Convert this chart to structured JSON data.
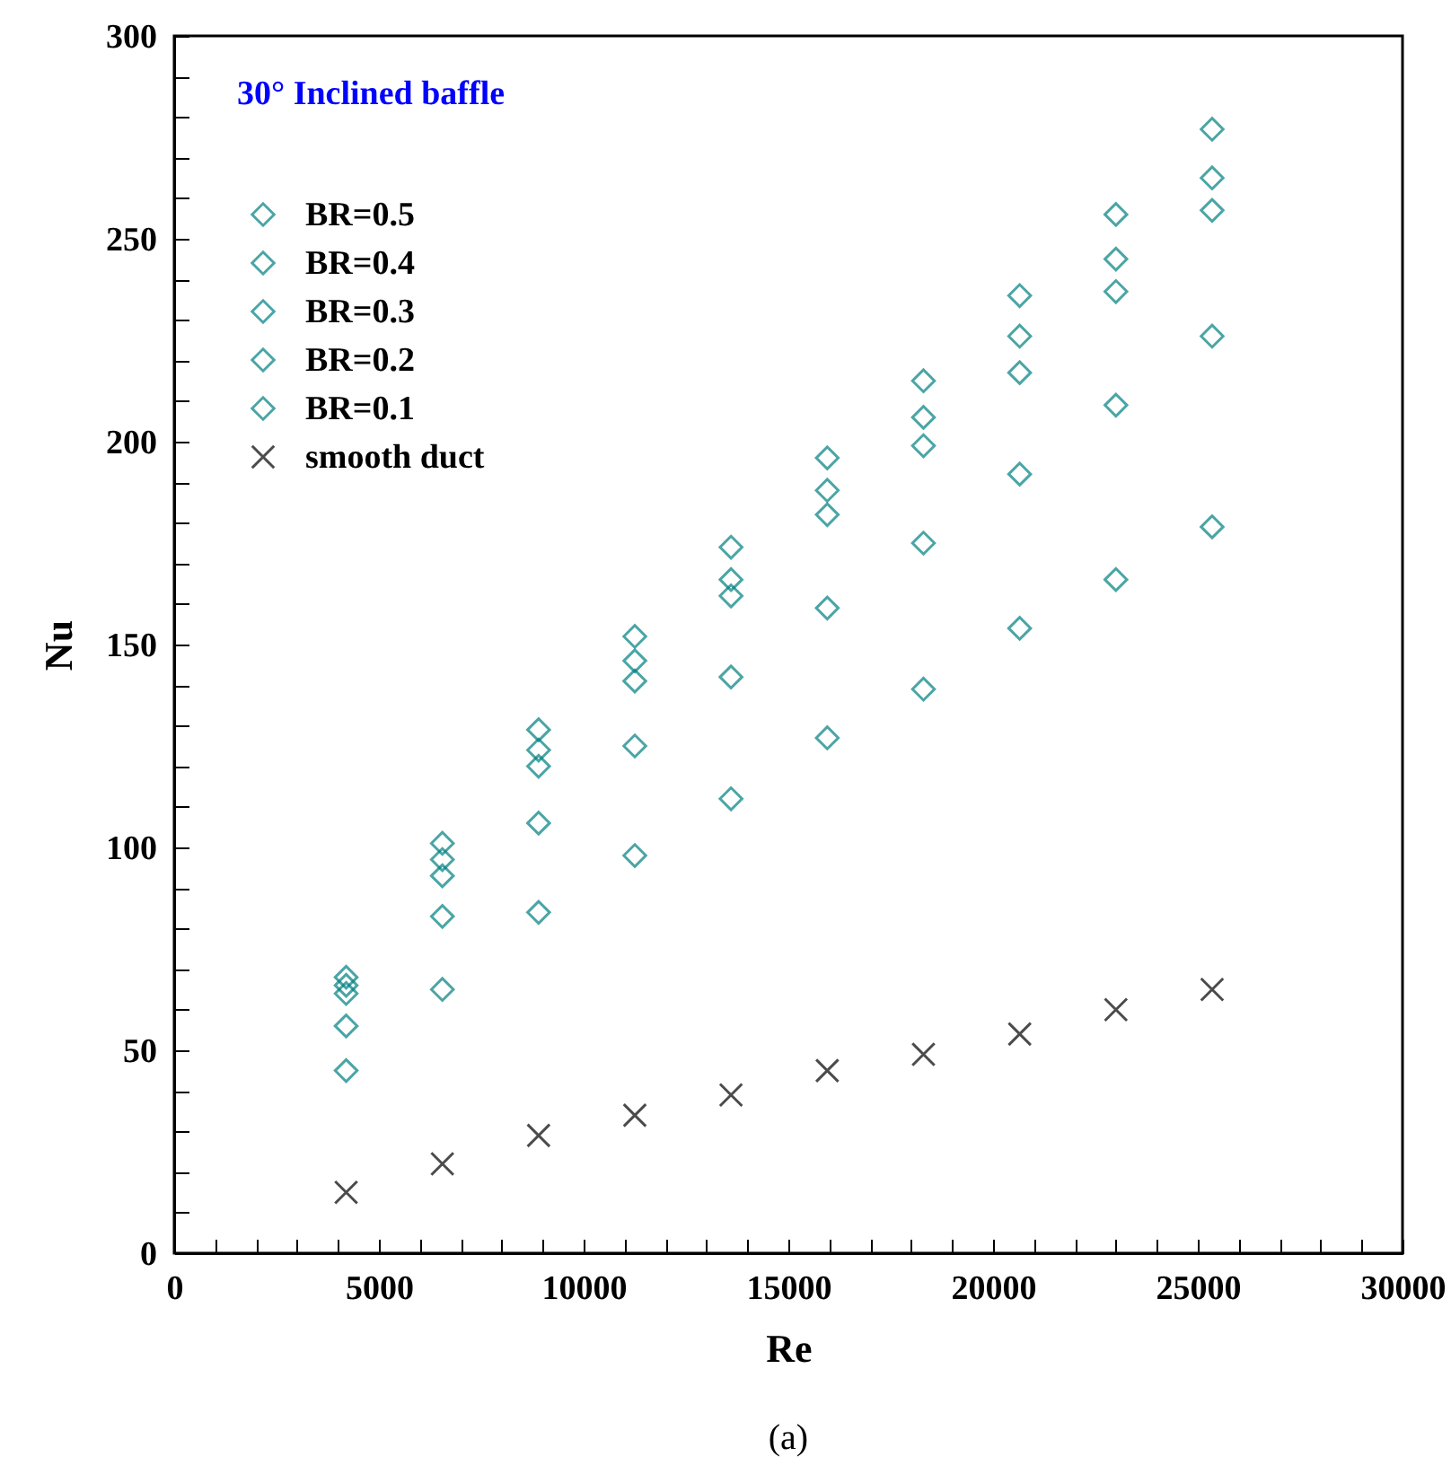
{
  "chart_data": {
    "type": "scatter",
    "title": "30° Inclined baffle",
    "xlabel": "Re",
    "ylabel": "Nu",
    "annotations": [
      "(a)"
    ],
    "x": [
      4200,
      6550,
      8900,
      11250,
      13600,
      15950,
      18300,
      20650,
      23000,
      25350
    ],
    "series": [
      {
        "name": "BR=0.5",
        "color": "#008080",
        "marker": "diamond",
        "values": [
          68,
          101,
          129,
          152,
          174,
          196,
          215,
          236,
          256,
          277
        ]
      },
      {
        "name": "BR=0.4",
        "color": "#008080",
        "marker": "diamond",
        "values": [
          66,
          97,
          124,
          146,
          166,
          188,
          206,
          226,
          245,
          265
        ]
      },
      {
        "name": "BR=0.3",
        "color": "#008080",
        "marker": "diamond",
        "values": [
          64,
          93,
          120,
          141,
          162,
          182,
          199,
          217,
          237,
          257
        ]
      },
      {
        "name": "BR=0.2",
        "color": "#008080",
        "marker": "diamond",
        "values": [
          56,
          83,
          106,
          125,
          142,
          159,
          175,
          192,
          209,
          226
        ]
      },
      {
        "name": "BR=0.1",
        "color": "#008080",
        "marker": "diamond",
        "values": [
          45,
          65,
          84,
          98,
          112,
          127,
          139,
          154,
          166,
          179
        ]
      },
      {
        "name": "smooth duct",
        "color": "#000000",
        "marker": "cross",
        "values": [
          15,
          22,
          29,
          34,
          39,
          45,
          49,
          54,
          60,
          65
        ]
      }
    ],
    "xlim": [
      0,
      30000
    ],
    "xticks": [
      0,
      {
        "value": 1000,
        "label": null
      },
      {
        "value": 2000,
        "label": null
      },
      {
        "value": 3000,
        "label": null
      },
      {
        "value": 4000,
        "label": null
      },
      5000,
      {
        "value": 6000,
        "label": null
      },
      {
        "value": 7000,
        "label": null
      },
      {
        "value": 8000,
        "label": null
      },
      {
        "value": 9000,
        "label": null
      },
      10000,
      {
        "value": 11000,
        "label": null
      },
      {
        "value": 12000,
        "label": null
      },
      {
        "value": 13000,
        "label": null
      },
      {
        "value": 14000,
        "label": null
      },
      15000,
      {
        "value": 16000,
        "label": null
      },
      {
        "value": 17000,
        "label": null
      },
      {
        "value": 18000,
        "label": null
      },
      {
        "value": 19000,
        "label": null
      },
      20000,
      {
        "value": 21000,
        "label": null
      },
      {
        "value": 22000,
        "label": null
      },
      {
        "value": 23000,
        "label": null
      },
      {
        "value": 24000,
        "label": null
      },
      25000,
      {
        "value": 26000,
        "label": null
      },
      {
        "value": 27000,
        "label": null
      },
      {
        "value": 28000,
        "label": null
      },
      {
        "value": 29000,
        "label": null
      },
      30000
    ],
    "ylim": [
      0,
      300
    ],
    "yticks": [
      0,
      {
        "value": 10,
        "label": null
      },
      {
        "value": 20,
        "label": null
      },
      {
        "value": 30,
        "label": null
      },
      {
        "value": 40,
        "label": null
      },
      50,
      {
        "value": 60,
        "label": null
      },
      {
        "value": 70,
        "label": null
      },
      {
        "value": 80,
        "label": null
      },
      {
        "value": 90,
        "label": null
      },
      100,
      {
        "value": 110,
        "label": null
      },
      {
        "value": 120,
        "label": null
      },
      {
        "value": 130,
        "label": null
      },
      {
        "value": 140,
        "label": null
      },
      150,
      {
        "value": 160,
        "label": null
      },
      {
        "value": 170,
        "label": null
      },
      {
        "value": 180,
        "label": null
      },
      {
        "value": 190,
        "label": null
      },
      200,
      {
        "value": 210,
        "label": null
      },
      {
        "value": 220,
        "label": null
      },
      {
        "value": 230,
        "label": null
      },
      {
        "value": 240,
        "label": null
      },
      250,
      {
        "value": 260,
        "label": null
      },
      {
        "value": 270,
        "label": null
      },
      {
        "value": 280,
        "label": null
      },
      {
        "value": 290,
        "label": null
      },
      300
    ],
    "grid": false,
    "legend": "top left"
  }
}
